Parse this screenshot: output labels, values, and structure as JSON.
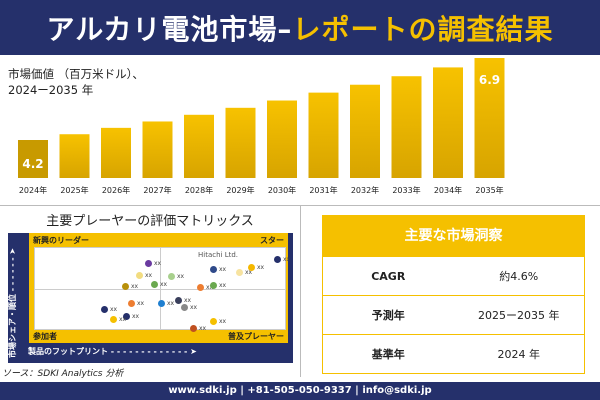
{
  "header": {
    "title_white": "アルカリ電池市場–",
    "title_yellow": "レポートの調査結果"
  },
  "chart_data": {
    "type": "bar",
    "title": "市場価値 （百万米ドル）、",
    "subtitle": "2024ー2035 年",
    "categories": [
      "2024年",
      "2025年",
      "2026年",
      "2027年",
      "2028年",
      "2029年",
      "2030年",
      "2031年",
      "2032年",
      "2033年",
      "2034年",
      "2035年"
    ],
    "values": [
      4.2,
      4.39,
      4.6,
      4.81,
      5.03,
      5.26,
      5.5,
      5.76,
      6.02,
      6.3,
      6.59,
      6.9
    ],
    "data_labels": {
      "0": "4.2",
      "11": "6.9"
    },
    "colors": {
      "bar": "#f5c000",
      "bar_dark": "#c89a00"
    },
    "grid": false
  },
  "matrix": {
    "title": "主要プレーヤーの評価マトリックス",
    "q_tl": "新興のリーダー",
    "q_tr": "スター",
    "q_bl": "参加者",
    "q_br": "普及プレーヤー",
    "x_axis": "製品のフットプリント - - - - - - - - - - - - - ➤",
    "y_axis": "市場シェア・順位 - - - - - - ➤",
    "highlight": "Hitachi Ltd.",
    "placeholder": "xx"
  },
  "source": "ソース：SDKI Analytics 分析",
  "insights": {
    "title": "主要な市場洞察",
    "rows": [
      {
        "k": "CAGR",
        "v": "約4.6%"
      },
      {
        "k": "予測年",
        "v": "2025ー2035 年"
      },
      {
        "k": "基準年",
        "v": "2024 年"
      }
    ]
  },
  "footer": "www.sdki.jp | +81-505-050-9337 | info@sdki.jp"
}
